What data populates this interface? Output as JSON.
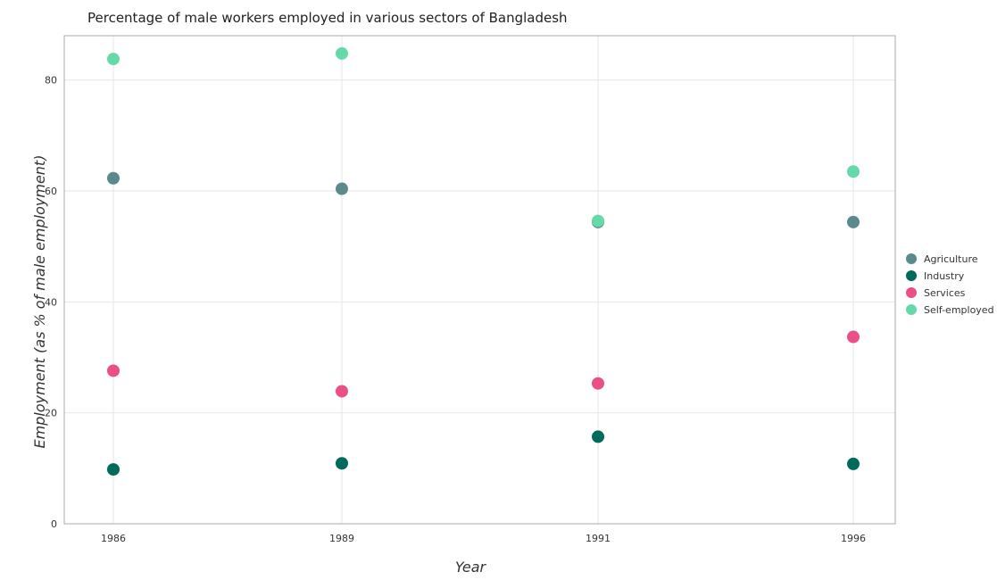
{
  "chart_data": {
    "type": "scatter",
    "title": "Percentage of male workers employed in various sectors of Bangladesh",
    "xlabel": "Year",
    "ylabel": "Employment (as % of male employment)",
    "categories": [
      "1986",
      "1989",
      "1991",
      "1996"
    ],
    "ylim": [
      0,
      88
    ],
    "yticks": [
      0,
      20,
      40,
      60,
      80
    ],
    "grid": true,
    "legend_position": "right",
    "series": [
      {
        "name": "Agriculture",
        "color": "#5b8a8c",
        "values": [
          62.3,
          60.4,
          54.4,
          54.4
        ]
      },
      {
        "name": "Industry",
        "color": "#006b5a",
        "values": [
          9.8,
          10.9,
          15.7,
          10.8
        ]
      },
      {
        "name": "Services",
        "color": "#ea4f86",
        "values": [
          27.6,
          23.9,
          25.3,
          33.7
        ]
      },
      {
        "name": "Self-employed",
        "color": "#66d9a8",
        "values": [
          83.8,
          84.8,
          54.6,
          63.5
        ]
      }
    ]
  }
}
